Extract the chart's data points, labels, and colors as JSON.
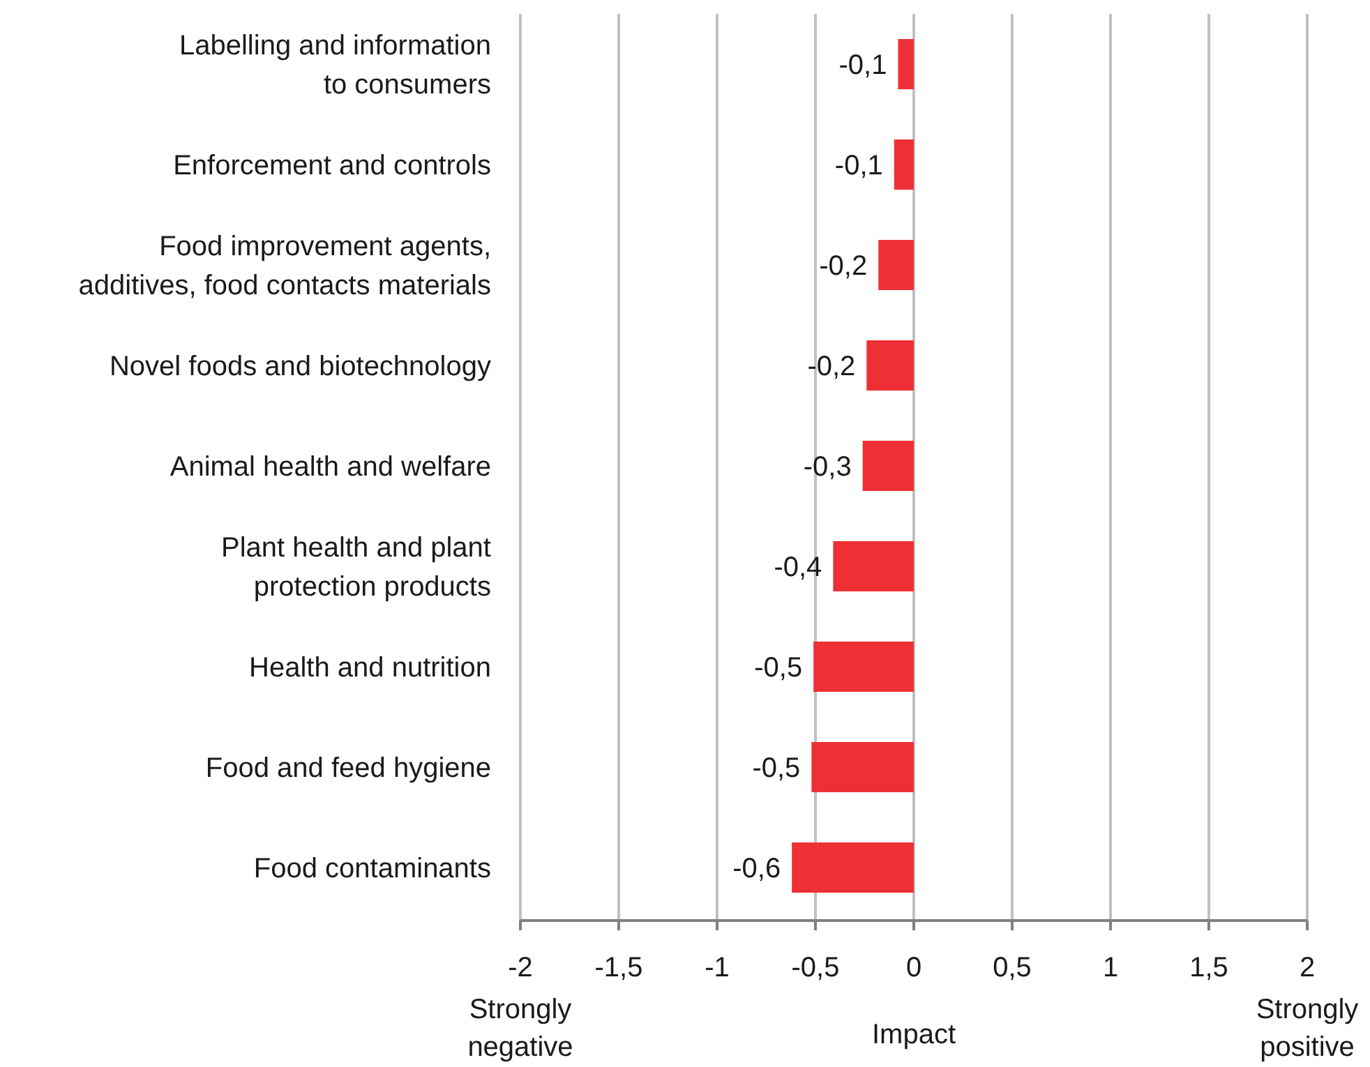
{
  "chart_data": {
    "type": "bar",
    "orientation": "horizontal",
    "categories": [
      "Labelling and information to consumers",
      "Enforcement and controls",
      "Food improvement agents, additives, food contacts materials",
      "Novel foods and biotechnology",
      "Animal health and welfare",
      "Plant health and plant protection products",
      "Health and nutrition",
      "Food and feed hygiene",
      "Food contaminants"
    ],
    "values": [
      -0.08,
      -0.1,
      -0.18,
      -0.24,
      -0.26,
      -0.41,
      -0.51,
      -0.52,
      -0.62
    ],
    "value_labels": [
      "-0,1",
      "-0,1",
      "-0,2",
      "-0,2",
      "-0,3",
      "-0,4",
      "-0,5",
      "-0,5",
      "-0,6"
    ],
    "color": "#ee3035",
    "xlim": [
      -2,
      2
    ],
    "xticks": [
      {
        "value": -2,
        "label": "-2"
      },
      {
        "value": -1.5,
        "label": "-1,5"
      },
      {
        "value": -1,
        "label": "-1"
      },
      {
        "value": -0.5,
        "label": "-0,5"
      },
      {
        "value": 0,
        "label": "0"
      },
      {
        "value": 0.5,
        "label": "0,5"
      },
      {
        "value": 1,
        "label": "1"
      },
      {
        "value": 1.5,
        "label": "1,5"
      },
      {
        "value": 2,
        "label": "2"
      }
    ],
    "xlabel": "Impact",
    "annotations": [
      "Strongly negative",
      "Strongly positive"
    ],
    "grid": "x"
  }
}
